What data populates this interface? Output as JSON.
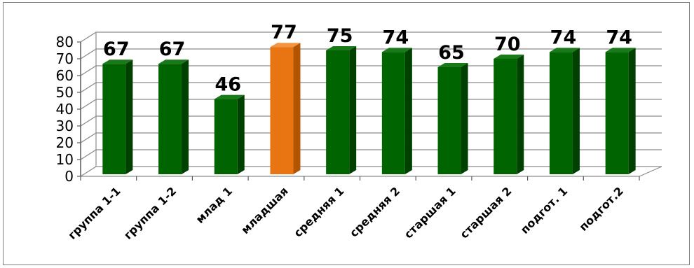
{
  "chart_data": {
    "type": "bar",
    "categories": [
      "группа 1-1",
      "группа 1-2",
      "млад 1",
      "младшая",
      "средняя 1",
      "средняя 2",
      "старшая  1",
      "старшая  2",
      "подгот. 1",
      "подгот.2"
    ],
    "values": [
      67,
      67,
      46,
      77,
      75,
      74,
      65,
      70,
      74,
      74
    ],
    "value_labels": [
      "67",
      "67",
      "46",
      "77",
      "75",
      "74",
      "65",
      "70",
      "74",
      "74"
    ],
    "y_ticks": [
      "0",
      "10",
      "20",
      "30",
      "40",
      "50",
      "60",
      "70",
      "80"
    ],
    "ylim": [
      0,
      80
    ],
    "grid": true,
    "legend": "none",
    "title": "",
    "xlabel": "",
    "ylabel": "",
    "highlight_index": 3,
    "colors": {
      "bar_front": "#006400",
      "bar_side": "#004000",
      "bar_top": "#1a7a1a",
      "highlight_front": "#e87512",
      "highlight_side": "#b35400",
      "highlight_top": "#f49440",
      "grid": "#8c8c8c"
    }
  }
}
